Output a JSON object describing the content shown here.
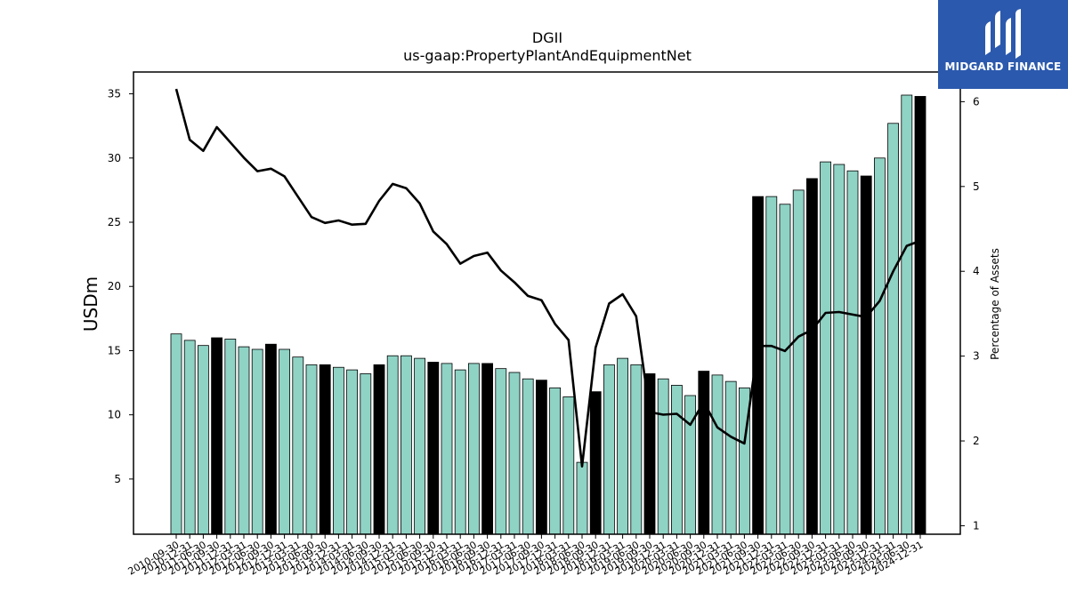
{
  "brand": {
    "name": "MIDGARD FINANCE",
    "icon": "midgard-logo-icon",
    "bg_color": "#2b59ad"
  },
  "chart_data": {
    "type": "bar",
    "title": "DGII",
    "subtitle": "us-gaap:PropertyPlantAndEquipmentNet",
    "ylabel": "USDm",
    "y2label": "Percentage of Assets",
    "ylim": [
      0.7,
      36.7
    ],
    "y2lim": [
      0.9,
      6.35
    ],
    "yticks": [
      5,
      10,
      15,
      20,
      25,
      30,
      35
    ],
    "y2ticks": [
      1,
      2,
      3,
      4,
      5,
      6
    ],
    "bar_color": "#8fd3c5",
    "highlight_color": "#000000",
    "line_color": "#000000",
    "categories": [
      "2010-09-30",
      "2010-12-31",
      "2011-06-30",
      "2011-09-30",
      "2011-12-31",
      "2012-03-31",
      "2012-06-30",
      "2012-09-30",
      "2012-12-31",
      "2013-03-31",
      "2013-06-30",
      "2013-09-30",
      "2013-12-31",
      "2014-03-31",
      "2014-06-30",
      "2014-09-30",
      "2014-12-31",
      "2015-03-31",
      "2015-06-30",
      "2015-09-30",
      "2015-12-31",
      "2016-03-31",
      "2016-06-30",
      "2016-09-30",
      "2016-12-31",
      "2017-03-31",
      "2017-06-30",
      "2017-09-30",
      "2017-12-31",
      "2018-03-31",
      "2018-06-30",
      "2018-09-30",
      "2018-12-31",
      "2019-03-31",
      "2019-06-30",
      "2019-09-30",
      "2019-12-31",
      "2020-03-31",
      "2020-06-30",
      "2020-09-30",
      "2020-12-31",
      "2021-03-31",
      "2021-06-30",
      "2021-09-30",
      "2021-12-31",
      "2022-03-31",
      "2022-06-30",
      "2022-09-30",
      "2022-12-31",
      "2023-03-31",
      "2023-06-30",
      "2023-09-30",
      "2023-12-31",
      "2024-03-31",
      "2024-06-30",
      "2024-12-31"
    ],
    "series": [
      {
        "type": "bar",
        "values": [
          16.3,
          15.8,
          15.4,
          16.0,
          15.9,
          15.3,
          15.1,
          15.5,
          15.1,
          14.5,
          13.9,
          13.9,
          13.7,
          13.5,
          13.2,
          13.9,
          14.6,
          14.6,
          14.4,
          14.1,
          14.0,
          13.5,
          14.0,
          14.0,
          13.6,
          13.3,
          12.8,
          12.7,
          12.1,
          11.4,
          6.3,
          11.8,
          13.9,
          14.4,
          13.9,
          13.2,
          12.8,
          12.3,
          11.5,
          13.4,
          13.1,
          12.6,
          12.1,
          27.0,
          27.0,
          26.4,
          27.5,
          28.4,
          29.7,
          29.5,
          29.0,
          28.6,
          30.0,
          32.7,
          34.9,
          34.8
        ],
        "highlight": [
          false,
          false,
          false,
          true,
          false,
          false,
          false,
          true,
          false,
          false,
          false,
          true,
          false,
          false,
          false,
          true,
          false,
          false,
          false,
          true,
          false,
          false,
          false,
          true,
          false,
          false,
          false,
          true,
          false,
          false,
          false,
          true,
          false,
          false,
          false,
          true,
          false,
          false,
          false,
          true,
          false,
          false,
          false,
          true,
          false,
          false,
          false,
          true,
          false,
          false,
          false,
          true,
          false,
          false,
          false,
          true
        ]
      },
      {
        "type": "line",
        "axis": "right",
        "values": [
          6.15,
          5.55,
          5.42,
          5.7,
          5.52,
          5.34,
          5.18,
          5.21,
          5.12,
          4.88,
          4.64,
          4.57,
          4.6,
          4.55,
          4.56,
          4.83,
          5.03,
          4.98,
          4.8,
          4.47,
          4.32,
          4.09,
          4.18,
          4.22,
          4.01,
          3.87,
          3.71,
          3.66,
          3.38,
          3.19,
          1.7,
          3.1,
          3.62,
          3.73,
          3.47,
          2.34,
          2.31,
          2.32,
          2.19,
          2.46,
          2.16,
          2.05,
          1.97,
          3.12,
          3.12,
          3.06,
          3.23,
          3.31,
          3.51,
          3.52,
          3.49,
          3.46,
          3.65,
          4.0,
          4.3,
          4.36
        ]
      }
    ],
    "grid": false
  }
}
